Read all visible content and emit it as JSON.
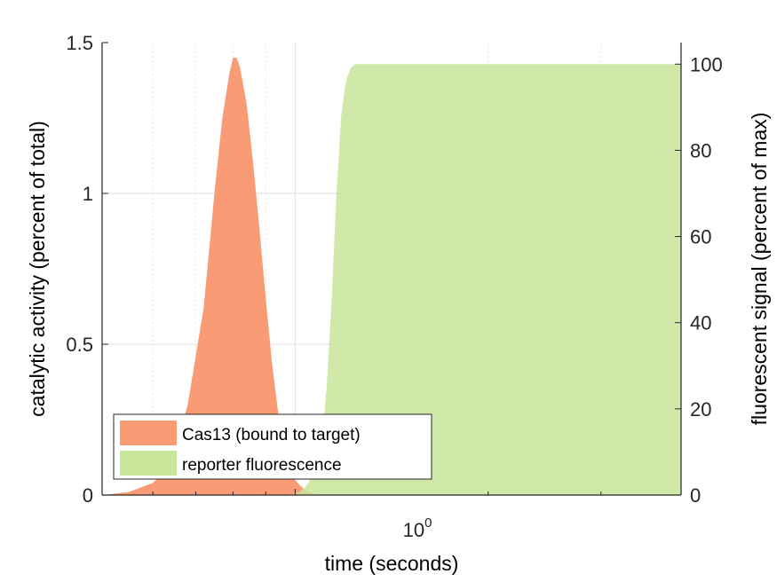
{
  "chart_data": {
    "type": "area",
    "title": "",
    "xlabel": "time (seconds)",
    "ylabel_left": "catalytic activity (percent of total)",
    "ylabel_right": "fluorescent signal (percent of max)",
    "x_scale": "log",
    "xlim": [
      0.5,
      4
    ],
    "ylim_left": [
      0,
      1.5
    ],
    "ylim_right": [
      0,
      105
    ],
    "x_tick_label": {
      "base": "10",
      "exponent": "0"
    },
    "left_ticks": [
      "0",
      "0.5",
      "1",
      "1.5"
    ],
    "right_ticks": [
      "0",
      "20",
      "40",
      "60",
      "80",
      "100"
    ],
    "grid": true,
    "legend_position": "bottom-left",
    "colors": {
      "cas13": "#f99b74",
      "reporter": "#c8e59a"
    },
    "series": [
      {
        "name": "Cas13 (bound to target)",
        "axis": "left",
        "x": [
          0.5,
          0.55,
          0.6,
          0.64,
          0.68,
          0.72,
          0.75,
          0.77,
          0.79,
          0.8,
          0.81,
          0.82,
          0.84,
          0.86,
          0.88,
          0.9,
          0.92,
          0.94,
          0.96,
          0.98,
          1.0,
          1.02,
          1.04,
          1.06,
          1.08,
          1.1
        ],
        "values": [
          0.0,
          0.01,
          0.04,
          0.1,
          0.3,
          0.62,
          1.02,
          1.25,
          1.4,
          1.45,
          1.45,
          1.42,
          1.3,
          1.1,
          0.88,
          0.65,
          0.44,
          0.28,
          0.16,
          0.09,
          0.05,
          0.03,
          0.015,
          0.008,
          0.003,
          0.0
        ]
      },
      {
        "name": "reporter fluorescence",
        "axis": "right",
        "x": [
          0.98,
          1.0,
          1.02,
          1.04,
          1.06,
          1.08,
          1.1,
          1.12,
          1.14,
          1.16,
          1.18,
          1.2,
          1.22,
          1.24,
          1.3,
          2.0,
          4.0
        ],
        "values": [
          0,
          0.3,
          1,
          2,
          4,
          7,
          12,
          25,
          45,
          70,
          88,
          96,
          99,
          100,
          100,
          100,
          100
        ]
      }
    ]
  }
}
